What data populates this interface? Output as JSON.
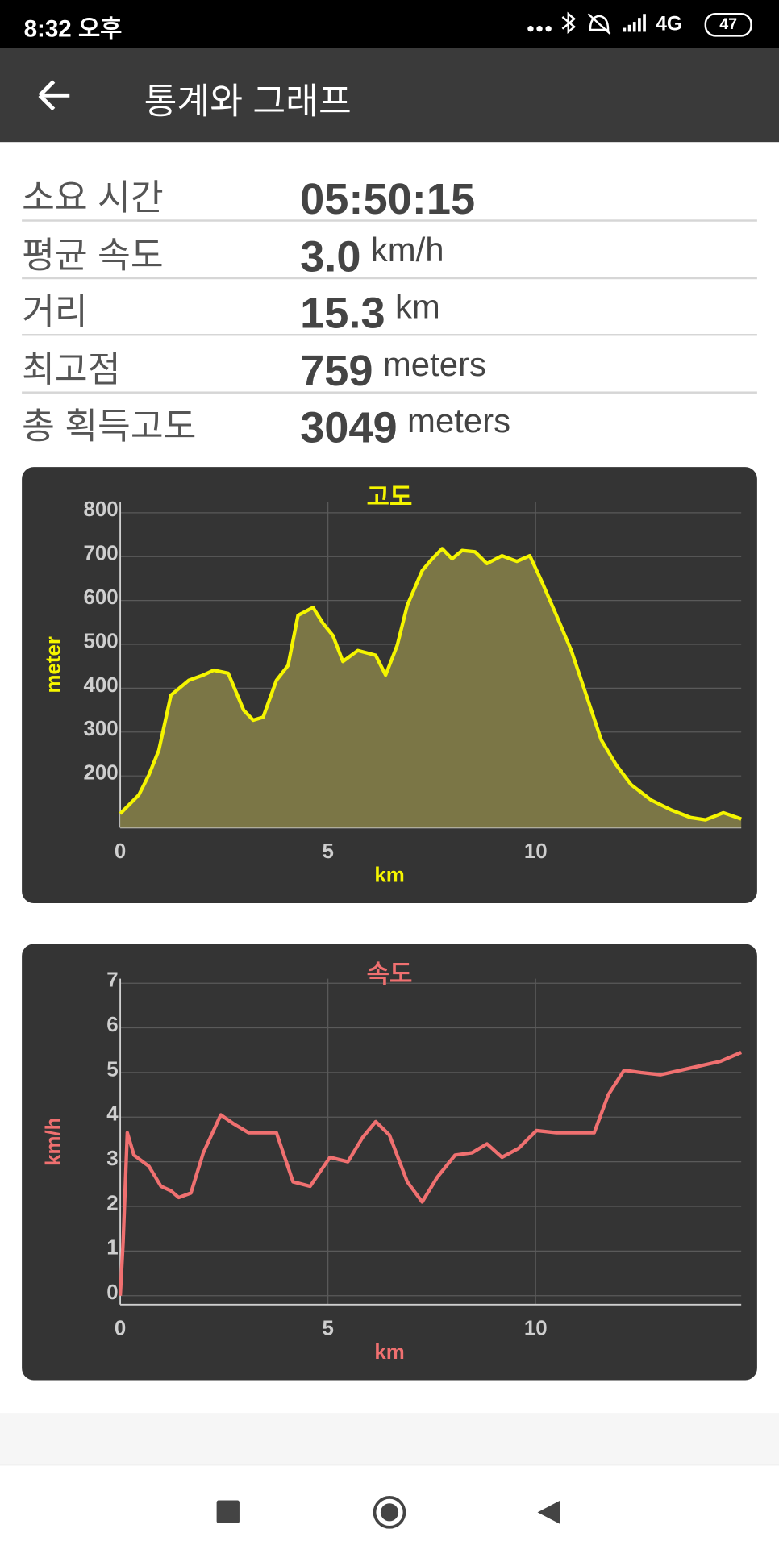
{
  "status_bar": {
    "time": "8:32 오후",
    "network": "4G",
    "battery": "47"
  },
  "app_bar": {
    "title": "통계와 그래프"
  },
  "stats": [
    {
      "label": "소요 시간",
      "value": "05:50:15"
    },
    {
      "label": "평균 속도",
      "value": "3.0",
      "unit": "km/h"
    },
    {
      "label": "거리",
      "value": "15.3",
      "unit": "km"
    },
    {
      "label": "최고점",
      "value": "759",
      "unit": "meters"
    },
    {
      "label": "총 획득고도",
      "value": "3049",
      "unit": "meters"
    }
  ],
  "chart_data": [
    {
      "type": "area",
      "title": "고도",
      "x_label": "km",
      "y_label": "meter",
      "color": "#f5f500",
      "fill": "#7b7646",
      "grid": true,
      "x": [
        0,
        0.45,
        0.69,
        0.93,
        1.22,
        1.65,
        2.0,
        2.25,
        2.6,
        2.97,
        3.2,
        3.44,
        3.76,
        4.04,
        4.28,
        4.64,
        4.88,
        5.12,
        5.36,
        5.72,
        6.15,
        6.39,
        6.67,
        6.91,
        7.27,
        7.51,
        7.75,
        7.99,
        8.23,
        8.54,
        8.83,
        9.19,
        9.55,
        9.86,
        10.14,
        10.5,
        10.86,
        11.22,
        11.58,
        11.94,
        12.3,
        12.78,
        13.25,
        13.73,
        14.09,
        14.52,
        14.95
      ],
      "values": [
        114,
        157,
        202,
        259,
        384,
        418,
        430,
        441,
        434,
        350,
        327,
        334,
        418,
        452,
        566,
        584,
        548,
        520,
        461,
        486,
        475,
        430,
        498,
        589,
        668,
        695,
        718,
        695,
        714,
        711,
        684,
        702,
        689,
        702,
        645,
        566,
        486,
        384,
        282,
        225,
        180,
        145,
        123,
        105,
        100,
        116,
        102
      ],
      "xlim": [
        0,
        14.95
      ],
      "ylim": [
        82,
        825
      ],
      "xticks": [
        0,
        5,
        10
      ],
      "yticks": [
        200,
        300,
        400,
        500,
        600,
        700,
        800
      ]
    },
    {
      "type": "line",
      "title": "속도",
      "x_label": "km",
      "y_label": "km/h",
      "color": "#f07070",
      "grid": true,
      "x": [
        0,
        0.07,
        0.17,
        0.33,
        0.69,
        0.98,
        1.22,
        1.41,
        1.7,
        2.0,
        2.42,
        2.73,
        3.09,
        3.44,
        3.76,
        4.16,
        4.57,
        5.05,
        5.48,
        5.84,
        6.15,
        6.48,
        6.91,
        7.27,
        7.63,
        8.06,
        8.47,
        8.83,
        9.19,
        9.59,
        10.02,
        10.5,
        10.98,
        11.41,
        11.75,
        12.13,
        12.54,
        13.01,
        13.49,
        13.97,
        14.45,
        14.95
      ],
      "values": [
        0,
        1.2,
        3.65,
        3.15,
        2.9,
        2.45,
        2.35,
        2.2,
        2.3,
        3.2,
        4.05,
        3.85,
        3.65,
        3.65,
        3.65,
        2.55,
        2.45,
        3.1,
        3.0,
        3.55,
        3.9,
        3.6,
        2.55,
        2.1,
        2.65,
        3.15,
        3.2,
        3.4,
        3.1,
        3.3,
        3.7,
        3.65,
        3.65,
        3.65,
        4.5,
        5.05,
        5.0,
        4.95,
        5.05,
        5.15,
        5.25,
        5.45
      ],
      "xlim": [
        0,
        14.95
      ],
      "ylim": [
        -0.2,
        7.1
      ],
      "xticks": [
        0,
        5,
        10
      ],
      "yticks": [
        0,
        1,
        2,
        3,
        4,
        5,
        6,
        7
      ]
    }
  ]
}
